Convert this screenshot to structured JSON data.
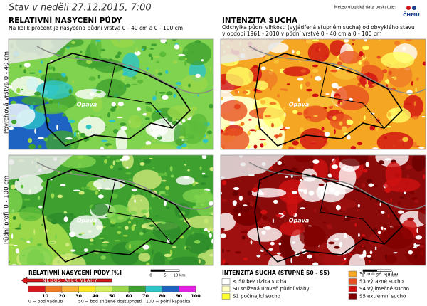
{
  "header": {
    "date": "Stav v neděli 27.12.2015, 7:00",
    "provider": "Meteorologická data poskytuje:",
    "logo": "ČHMÚ"
  },
  "left_panel": {
    "title": "RELATIVNÍ NASYCENÍ PŮDY",
    "subtitle": "Na kolik procent je nasycena půdní vrstva 0 - 40 cm a 0 - 100 cm"
  },
  "right_panel": {
    "title": "INTENZITA SUCHA",
    "subtitle": [
      "Odchylka půdní vlhkosti (vyjádřená stupněm sucha) od obvyklého stavu",
      "v období 1961 - 2010 v půdní vrstvě 0 - 40 cm a 0 - 100 cm"
    ]
  },
  "rows": [
    "Povrchová vrstva 0 - 40 cm",
    "Půdní profil 0 - 100 cm"
  ],
  "maps": {
    "town": "Opava",
    "scale": [
      "0",
      "5",
      "10 km"
    ]
  },
  "saturation_legend": {
    "title": "RELATIVNÍ NASYCENÍ PŮDY [%]",
    "arrow": "NEDOSTATEK VLÁHY",
    "bins": [
      0,
      10,
      20,
      30,
      40,
      50,
      60,
      70,
      80,
      90,
      100
    ],
    "colors": [
      "#d7191c",
      "#f07c24",
      "#f9b33a",
      "#fde725",
      "#d4ee5e",
      "#9ad84a",
      "#3ea12f",
      "#2ec4c8",
      "#1f63c2",
      "#e51ee5"
    ],
    "ticks": [
      10,
      20,
      30,
      40,
      50,
      60,
      70,
      80,
      90,
      100
    ],
    "notes": [
      "0 = bod vadnutí",
      "50 = bod snížené dostupnosti",
      "100 = polní kapacita"
    ]
  },
  "drought_legend": {
    "title": "INTENZITA SUCHA (STUPNĚ S0 - S5)",
    "items": [
      {
        "label": "< S0 bez rizika sucha",
        "color": "#ffffff"
      },
      {
        "label": "S0 snížená úroveň půdní vláhy",
        "color": "#ffffc0"
      },
      {
        "label": "S1 počínající sucho",
        "color": "#ffff33"
      },
      {
        "label": "S2 mírné sucho",
        "color": "#f5a623"
      },
      {
        "label": "S3 výrazné sucho",
        "color": "#e8501e"
      },
      {
        "label": "S4 výjimečné sucho",
        "color": "#d01010"
      },
      {
        "label": "S5 extrémní sucho",
        "color": "#7f0000"
      }
    ]
  }
}
